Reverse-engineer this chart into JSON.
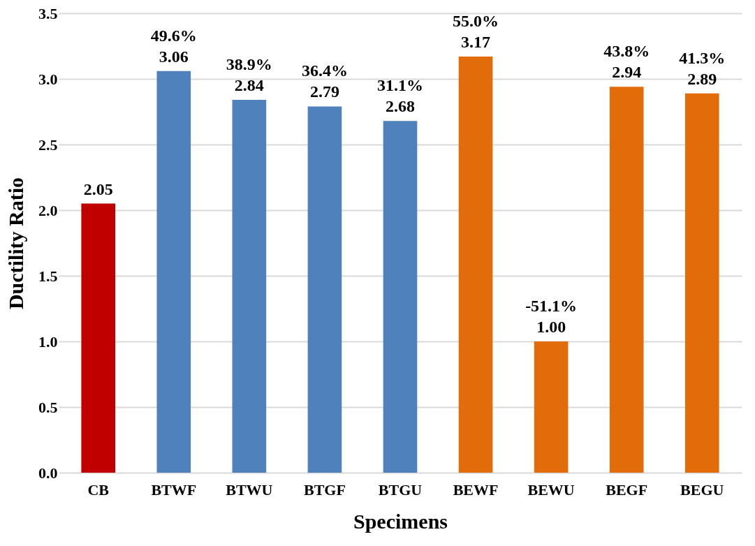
{
  "chart_data": {
    "type": "bar",
    "xlabel": "Specimens",
    "ylabel": "Ductility Ratio",
    "categories": [
      "CB",
      "BTWF",
      "BTWU",
      "BTGF",
      "BTGU",
      "BEWF",
      "BEWU",
      "BEGF",
      "BEGU"
    ],
    "values": [
      2.05,
      3.06,
      2.84,
      2.79,
      2.68,
      3.17,
      1.0,
      2.94,
      2.89
    ],
    "colors": [
      "#c00000",
      "#4f81bd",
      "#4f81bd",
      "#4f81bd",
      "#4f81bd",
      "#e36c0a",
      "#e36c0a",
      "#e36c0a",
      "#e36c0a"
    ],
    "value_labels": [
      "2.05",
      "49.6%\n3.06",
      "38.9%\n2.84",
      "36.4%\n2.79",
      "31.1%\n2.68",
      "55.0%\n3.17",
      "-51.1%\n1.00",
      "43.8%\n2.94",
      "41.3%\n2.89"
    ],
    "ylim": [
      0,
      3.5
    ],
    "yticks": [
      {
        "value": 0,
        "label": "0.0"
      },
      {
        "value": 0.5,
        "label": "0.5"
      },
      {
        "value": 1,
        "label": "1.0"
      },
      {
        "value": 1.5,
        "label": "1.5"
      },
      {
        "value": 2,
        "label": "2.0"
      },
      {
        "value": 2.5,
        "label": "2.5"
      },
      {
        "value": 3,
        "label": "3.0"
      },
      {
        "value": 3.5,
        "label": "3.5"
      }
    ],
    "grid": "y"
  }
}
